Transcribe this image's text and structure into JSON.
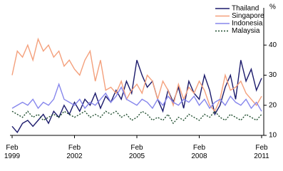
{
  "chart_data": {
    "type": "line",
    "y_label": "%",
    "x": [
      "1999-02",
      "1999-05",
      "1999-08",
      "1999-11",
      "2000-02",
      "2000-05",
      "2000-08",
      "2000-11",
      "2001-02",
      "2001-05",
      "2001-08",
      "2001-11",
      "2002-02",
      "2002-05",
      "2002-08",
      "2002-11",
      "2003-02",
      "2003-05",
      "2003-08",
      "2003-11",
      "2004-02",
      "2004-05",
      "2004-08",
      "2004-11",
      "2005-02",
      "2005-05",
      "2005-08",
      "2005-11",
      "2006-02",
      "2006-05",
      "2006-08",
      "2006-11",
      "2007-02",
      "2007-05",
      "2007-08",
      "2007-11",
      "2008-02",
      "2008-05",
      "2008-08",
      "2008-11",
      "2009-02",
      "2009-05",
      "2009-08",
      "2009-11",
      "2010-02",
      "2010-05",
      "2010-08",
      "2010-11",
      "2011-02"
    ],
    "series": [
      {
        "name": "Thailand",
        "color": "#1b1a6b",
        "dash": "none",
        "values": [
          13,
          11,
          14,
          15,
          13,
          15,
          17,
          14,
          18,
          16,
          20,
          17,
          21,
          18,
          22,
          20,
          24,
          19,
          23,
          21,
          25,
          22,
          28,
          24,
          35,
          30,
          26,
          28,
          22,
          18,
          25,
          21,
          26,
          19,
          28,
          24,
          22,
          30,
          25,
          17,
          20,
          26,
          30,
          22,
          35,
          28,
          32,
          25,
          29
        ]
      },
      {
        "name": "Singapore",
        "color": "#f4a07c",
        "dash": "none",
        "values": [
          30,
          38,
          36,
          40,
          35,
          42,
          38,
          40,
          36,
          38,
          33,
          35,
          32,
          30,
          35,
          38,
          28,
          35,
          25,
          26,
          24,
          28,
          22,
          25,
          27,
          24,
          30,
          28,
          22,
          28,
          25,
          20,
          27,
          22,
          26,
          24,
          28,
          25,
          20,
          18,
          22,
          30,
          25,
          26,
          28,
          24,
          22,
          20,
          23
        ]
      },
      {
        "name": "Indonesia",
        "color": "#8686ec",
        "dash": "none",
        "values": [
          19,
          20,
          21,
          20,
          22,
          19,
          21,
          20,
          22,
          27,
          22,
          21,
          20,
          22,
          19,
          21,
          20,
          22,
          24,
          21,
          23,
          26,
          22,
          21,
          20,
          22,
          21,
          19,
          22,
          20,
          23,
          21,
          20,
          22,
          21,
          23,
          20,
          22,
          19,
          21,
          22,
          20,
          23,
          21,
          20,
          22,
          19,
          21,
          18
        ]
      },
      {
        "name": "Malaysia",
        "color": "#1f4d2e",
        "dash": "2 2",
        "values": [
          18,
          17,
          16,
          18,
          16,
          17,
          15,
          16,
          17,
          16,
          18,
          17,
          16,
          17,
          18,
          16,
          17,
          16,
          18,
          17,
          18,
          16,
          17,
          15,
          16,
          18,
          17,
          15,
          16,
          15,
          17,
          14,
          16,
          15,
          17,
          16,
          15,
          17,
          16,
          18,
          16,
          15,
          17,
          16,
          15,
          17,
          16,
          15,
          17
        ]
      }
    ],
    "xlim": [
      "1999-02",
      "2011-02"
    ],
    "xticks": [
      {
        "value": "1999-02",
        "label": "Feb 1999"
      },
      {
        "value": "2002-02",
        "label": "Feb 2002"
      },
      {
        "value": "2005-02",
        "label": "Feb 2005"
      },
      {
        "value": "2008-02",
        "label": "Feb 2008"
      },
      {
        "value": "2011-02",
        "label": "Feb 2011"
      }
    ],
    "ylim": [
      10,
      50
    ],
    "yticks": [
      10,
      20,
      30,
      40
    ],
    "legend": "top-right"
  }
}
